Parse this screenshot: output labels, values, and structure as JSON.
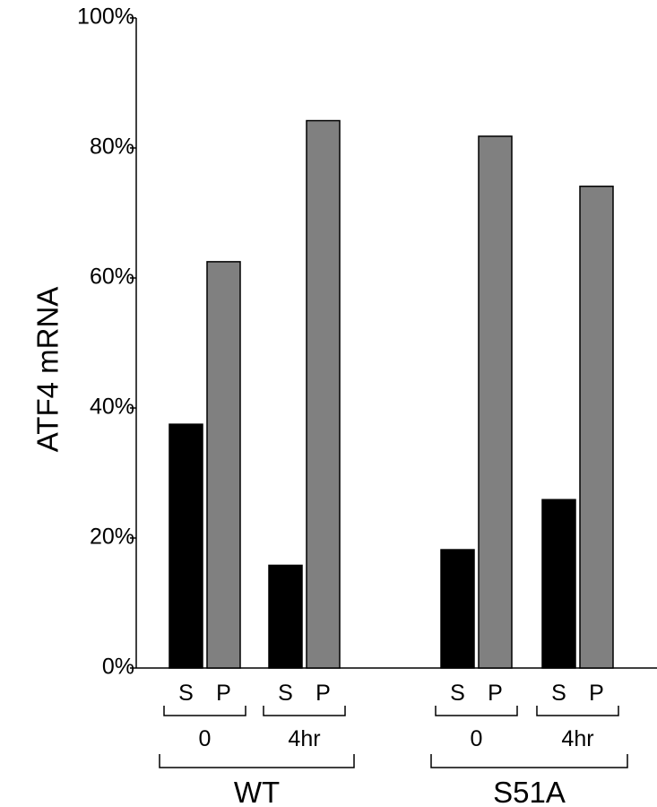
{
  "chart_data": {
    "type": "bar",
    "title": "",
    "xlabel": "",
    "ylabel": "ATF4 mRNA",
    "ylim": [
      0,
      100
    ],
    "yticks": [
      "0%",
      "20%",
      "40%",
      "60%",
      "80%",
      "100%"
    ],
    "grid": false,
    "groups": [
      {
        "label": "WT",
        "timepoints": [
          {
            "label": "0",
            "bars": [
              {
                "label": "S",
                "value": 37.5
              },
              {
                "label": "P",
                "value": 62.5
              }
            ]
          },
          {
            "label": "4hr",
            "bars": [
              {
                "label": "S",
                "value": 15.8
              },
              {
                "label": "P",
                "value": 84.2
              }
            ]
          }
        ]
      },
      {
        "label": "S51A",
        "timepoints": [
          {
            "label": "0",
            "bars": [
              {
                "label": "S",
                "value": 18.2
              },
              {
                "label": "P",
                "value": 81.8
              }
            ]
          },
          {
            "label": "4hr",
            "bars": [
              {
                "label": "S",
                "value": 25.9
              },
              {
                "label": "P",
                "value": 74.1
              }
            ]
          }
        ]
      }
    ],
    "colors": {
      "S": "#000000",
      "P": "#808080"
    }
  }
}
